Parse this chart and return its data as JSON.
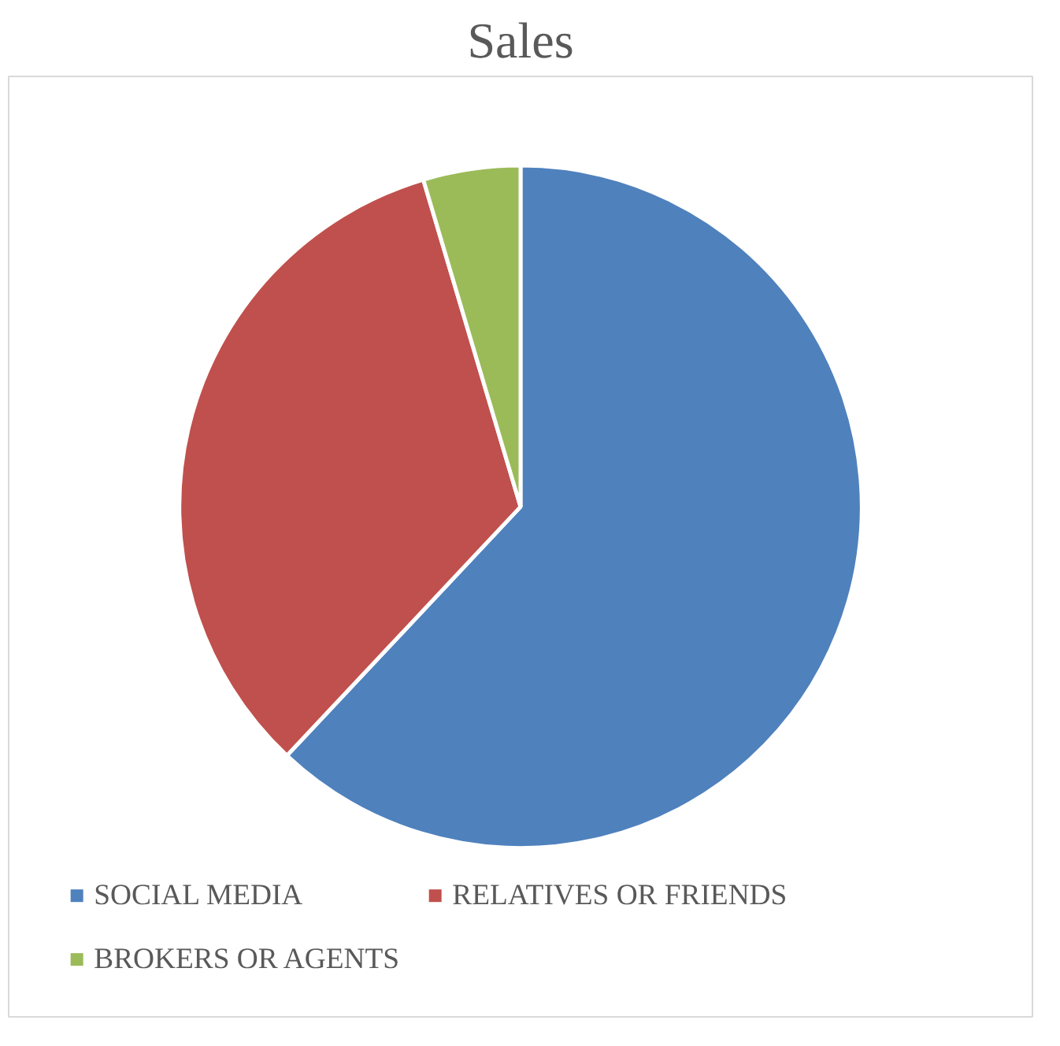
{
  "chart_data": {
    "type": "pie",
    "title": "Sales",
    "categories": [
      "SOCIAL MEDIA",
      "RELATIVES OR FRIENDS",
      "BROKERS OR AGENTS"
    ],
    "values": [
      62,
      33.4,
      4.6
    ],
    "colors": [
      "#4f81bd",
      "#c0504d",
      "#9bbb59"
    ],
    "legend": "bottom"
  }
}
